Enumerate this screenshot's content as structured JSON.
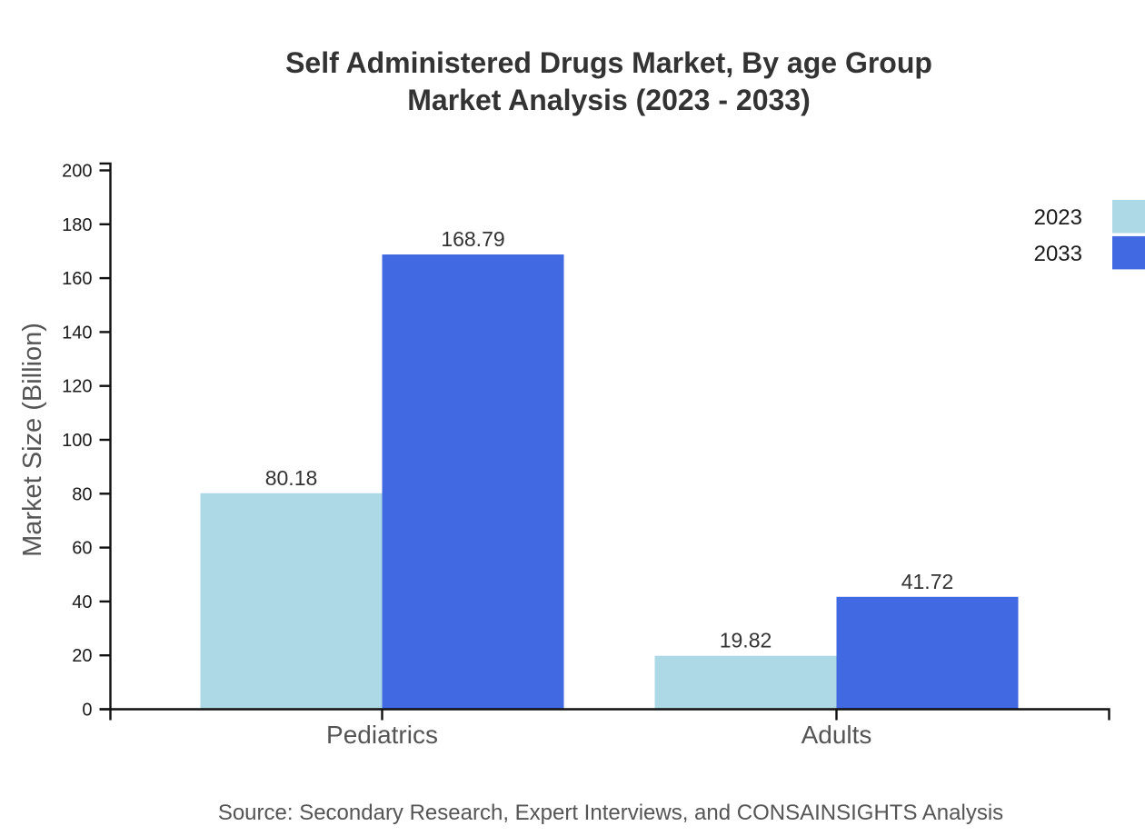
{
  "chart_data": {
    "type": "bar",
    "title_lines": [
      "Self Administered Drugs Market, By age Group",
      "Market Analysis (2023 - 2033)"
    ],
    "categories": [
      "Pediatrics",
      "Adults"
    ],
    "series": [
      {
        "name": "2023",
        "color": "#add8e6",
        "values": [
          80.18,
          19.82
        ]
      },
      {
        "name": "2033",
        "color": "#4169e1",
        "values": [
          168.79,
          41.72
        ]
      }
    ],
    "value_labels": [
      [
        "80.18",
        "19.82"
      ],
      [
        "168.79",
        "41.72"
      ]
    ],
    "ylabel": "Market Size (Billion)",
    "yticks": [
      0,
      20,
      40,
      60,
      80,
      100,
      120,
      140,
      160,
      180,
      200
    ],
    "ylim": [
      0,
      202.548
    ],
    "grid": false,
    "legend_position": "top-right-outside",
    "legend_entries": [
      "2023",
      "2033"
    ],
    "source_note": "Source: Secondary Research, Expert Interviews, and CONSAINSIGHTS Analysis",
    "colors": {
      "series_2023": "#add8e6",
      "series_2033": "#4169e1",
      "title_text": "#333333",
      "value_label_text": "#333333",
      "axis_line": "#111111",
      "tick_label_text": "#1a1a1a",
      "category_label_text": "#555555",
      "source_text": "#555555"
    }
  }
}
